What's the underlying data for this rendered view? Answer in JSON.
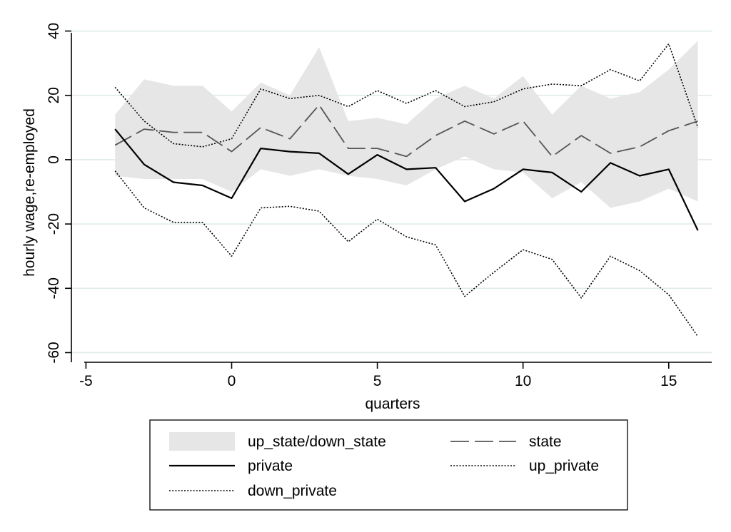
{
  "chart_data": {
    "type": "line",
    "xlabel": "quarters",
    "ylabel": "hourly wage,re-employed",
    "xlim": [
      -5.5,
      16.5
    ],
    "ylim": [
      -63,
      43
    ],
    "xticks": [
      -5,
      0,
      5,
      10,
      15
    ],
    "yticks": [
      -60,
      -40,
      -20,
      0,
      20,
      40
    ],
    "grid": "horizontal",
    "legend_position": "bottom",
    "x": [
      -4,
      -3,
      -2,
      -1,
      0,
      1,
      2,
      3,
      4,
      5,
      6,
      7,
      8,
      9,
      10,
      11,
      12,
      13,
      14,
      15,
      16
    ],
    "band": {
      "name": "up_state/down_state",
      "color": "#e6e6e6",
      "upper": [
        14,
        25,
        23,
        23,
        15,
        24,
        20,
        35,
        12,
        13,
        11,
        19,
        23,
        19,
        26,
        14,
        23,
        19,
        21,
        28,
        37
      ],
      "lower": [
        -5,
        -6,
        -6,
        -6,
        -10,
        -3,
        -5,
        -3,
        -5,
        -6,
        -8,
        -3,
        1,
        -3,
        -4,
        -12,
        -7,
        -15,
        -13,
        -9,
        -13
      ]
    },
    "series": [
      {
        "name": "state",
        "style": "dashed",
        "color": "#555555",
        "values": [
          4.5,
          9.5,
          8.5,
          8.5,
          2.5,
          10,
          6.5,
          17,
          3.5,
          3.5,
          1,
          7.5,
          12,
          8,
          12,
          1,
          7.5,
          2,
          4,
          9,
          12
        ]
      },
      {
        "name": "private",
        "style": "solid",
        "color": "#000000",
        "values": [
          9.5,
          -1.5,
          -7,
          -8,
          -12,
          3.5,
          2.5,
          2,
          -4.5,
          1.5,
          -3,
          -2.5,
          -13,
          -9,
          -3,
          -4,
          -10,
          -1,
          -5,
          -3,
          -22
        ]
      },
      {
        "name": "up_private",
        "style": "dotted",
        "color": "#000000",
        "values": [
          22.5,
          12,
          5,
          4,
          6.5,
          22,
          19,
          20,
          16.5,
          21.5,
          17.5,
          21.5,
          16.5,
          18,
          22,
          23.5,
          23,
          28,
          24.5,
          36,
          10
        ]
      },
      {
        "name": "down_private",
        "style": "dotted",
        "color": "#000000",
        "values": [
          -3.5,
          -15,
          -19.5,
          -19.5,
          -30,
          -15,
          -14.5,
          -16,
          -25.5,
          -18.5,
          -24,
          -26.5,
          -42.5,
          -35,
          -28,
          -31,
          -43,
          -30,
          -34.5,
          -42,
          -55
        ]
      }
    ],
    "legend": [
      {
        "label": "up_state/down_state",
        "kind": "band"
      },
      {
        "label": "state",
        "kind": "dashed"
      },
      {
        "label": "private",
        "kind": "solid"
      },
      {
        "label": "up_private",
        "kind": "dotted"
      },
      {
        "label": "down_private",
        "kind": "dotted"
      }
    ]
  }
}
